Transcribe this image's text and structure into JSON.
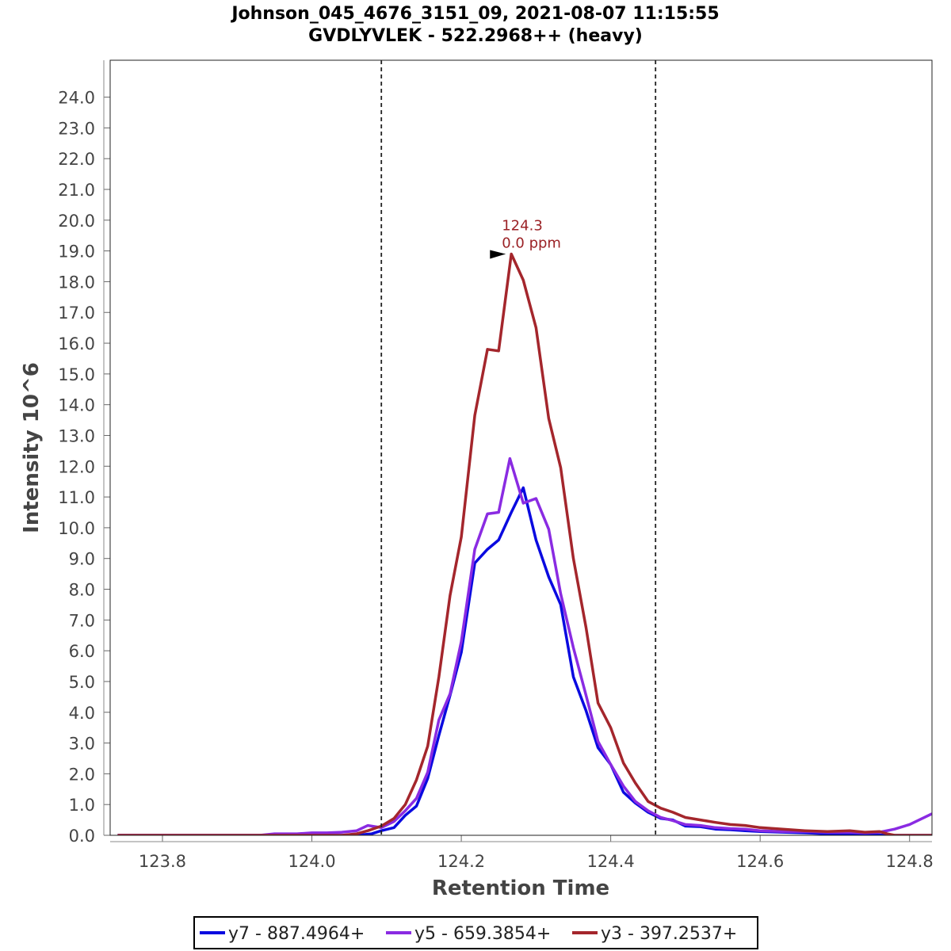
{
  "chart_data": {
    "type": "line",
    "title": "Johnson_045_4676_3151_09, 2021-08-07 11:15:55",
    "subtitle": "GVDLYVLEK - 522.2968++ (heavy)",
    "xlabel": "Retention Time",
    "ylabel": "Intensity 10^6",
    "xlim": [
      123.73,
      124.83
    ],
    "ylim": [
      0,
      25.2
    ],
    "x_ticks": [
      "123.8",
      "124.0",
      "124.2",
      "124.4",
      "124.6",
      "124.8"
    ],
    "x_tick_values": [
      123.8,
      124.0,
      124.2,
      124.4,
      124.6,
      124.8
    ],
    "y_ticks": [
      "0.0",
      "1.0",
      "2.0",
      "3.0",
      "4.0",
      "5.0",
      "6.0",
      "7.0",
      "8.0",
      "9.0",
      "10.0",
      "11.0",
      "12.0",
      "13.0",
      "14.0",
      "15.0",
      "16.0",
      "17.0",
      "18.0",
      "19.0",
      "20.0",
      "21.0",
      "22.0",
      "23.0",
      "24.0"
    ],
    "y_tick_values": [
      0,
      1,
      2,
      3,
      4,
      5,
      6,
      7,
      8,
      9,
      10,
      11,
      12,
      13,
      14,
      15,
      16,
      17,
      18,
      19,
      20,
      21,
      22,
      23,
      24
    ],
    "boundaries": [
      124.093,
      124.46
    ],
    "annotation": {
      "x": 124.267,
      "y": 18.9,
      "line1": "124.3",
      "line2": "0.0 ppm",
      "color": "#9b2226"
    },
    "legend_position": "bottom",
    "series": [
      {
        "name": "y7 - 887.4964+",
        "color": "#0a0ae0",
        "points": [
          [
            123.74,
            0
          ],
          [
            124.06,
            0
          ],
          [
            124.08,
            0.05
          ],
          [
            124.093,
            0.15
          ],
          [
            124.11,
            0.25
          ],
          [
            124.125,
            0.65
          ],
          [
            124.14,
            0.95
          ],
          [
            124.155,
            1.85
          ],
          [
            124.17,
            3.25
          ],
          [
            124.185,
            4.55
          ],
          [
            124.2,
            5.95
          ],
          [
            124.218,
            8.85
          ],
          [
            124.235,
            9.3
          ],
          [
            124.25,
            9.6
          ],
          [
            124.267,
            10.5
          ],
          [
            124.283,
            11.3
          ],
          [
            124.3,
            9.6
          ],
          [
            124.317,
            8.4
          ],
          [
            124.333,
            7.5
          ],
          [
            124.35,
            5.15
          ],
          [
            124.367,
            4.05
          ],
          [
            124.383,
            2.85
          ],
          [
            124.4,
            2.3
          ],
          [
            124.417,
            1.4
          ],
          [
            124.433,
            1.05
          ],
          [
            124.45,
            0.75
          ],
          [
            124.467,
            0.55
          ],
          [
            124.483,
            0.5
          ],
          [
            124.5,
            0.3
          ],
          [
            124.52,
            0.28
          ],
          [
            124.54,
            0.2
          ],
          [
            124.56,
            0.18
          ],
          [
            124.58,
            0.15
          ],
          [
            124.6,
            0.12
          ],
          [
            124.63,
            0.1
          ],
          [
            124.66,
            0.08
          ],
          [
            124.69,
            0.05
          ],
          [
            124.72,
            0.05
          ],
          [
            124.75,
            0.02
          ],
          [
            124.77,
            0
          ],
          [
            124.83,
            0
          ]
        ]
      },
      {
        "name": "y5 - 659.3854+",
        "color": "#8a2be2",
        "points": [
          [
            123.74,
            0
          ],
          [
            123.93,
            0
          ],
          [
            123.95,
            0.05
          ],
          [
            123.98,
            0.05
          ],
          [
            124.0,
            0.08
          ],
          [
            124.02,
            0.08
          ],
          [
            124.04,
            0.1
          ],
          [
            124.06,
            0.15
          ],
          [
            124.075,
            0.32
          ],
          [
            124.093,
            0.25
          ],
          [
            124.11,
            0.45
          ],
          [
            124.125,
            0.8
          ],
          [
            124.14,
            1.2
          ],
          [
            124.155,
            2.05
          ],
          [
            124.17,
            3.75
          ],
          [
            124.185,
            4.6
          ],
          [
            124.2,
            6.3
          ],
          [
            124.218,
            9.3
          ],
          [
            124.235,
            10.45
          ],
          [
            124.25,
            10.5
          ],
          [
            124.265,
            12.25
          ],
          [
            124.283,
            10.8
          ],
          [
            124.3,
            10.95
          ],
          [
            124.317,
            9.95
          ],
          [
            124.333,
            7.85
          ],
          [
            124.35,
            6.1
          ],
          [
            124.367,
            4.55
          ],
          [
            124.383,
            3.05
          ],
          [
            124.4,
            2.3
          ],
          [
            124.417,
            1.6
          ],
          [
            124.433,
            1.1
          ],
          [
            124.45,
            0.8
          ],
          [
            124.467,
            0.58
          ],
          [
            124.483,
            0.48
          ],
          [
            124.5,
            0.35
          ],
          [
            124.52,
            0.32
          ],
          [
            124.54,
            0.25
          ],
          [
            124.56,
            0.22
          ],
          [
            124.58,
            0.2
          ],
          [
            124.6,
            0.15
          ],
          [
            124.63,
            0.12
          ],
          [
            124.66,
            0.12
          ],
          [
            124.69,
            0.1
          ],
          [
            124.72,
            0.1
          ],
          [
            124.74,
            0.08
          ],
          [
            124.76,
            0.1
          ],
          [
            124.78,
            0.2
          ],
          [
            124.8,
            0.35
          ],
          [
            124.83,
            0.7
          ]
        ]
      },
      {
        "name": "y3 - 397.2537+",
        "color": "#a4262c",
        "points": [
          [
            123.74,
            0
          ],
          [
            124.04,
            0
          ],
          [
            124.06,
            0.05
          ],
          [
            124.075,
            0.15
          ],
          [
            124.093,
            0.3
          ],
          [
            124.11,
            0.55
          ],
          [
            124.125,
            1.0
          ],
          [
            124.14,
            1.8
          ],
          [
            124.155,
            2.9
          ],
          [
            124.17,
            5.15
          ],
          [
            124.185,
            7.8
          ],
          [
            124.2,
            9.7
          ],
          [
            124.218,
            13.65
          ],
          [
            124.235,
            15.8
          ],
          [
            124.25,
            15.75
          ],
          [
            124.267,
            18.9
          ],
          [
            124.283,
            18.05
          ],
          [
            124.3,
            16.5
          ],
          [
            124.317,
            13.55
          ],
          [
            124.333,
            11.95
          ],
          [
            124.35,
            9.0
          ],
          [
            124.367,
            6.75
          ],
          [
            124.383,
            4.3
          ],
          [
            124.4,
            3.5
          ],
          [
            124.417,
            2.35
          ],
          [
            124.433,
            1.7
          ],
          [
            124.45,
            1.1
          ],
          [
            124.467,
            0.88
          ],
          [
            124.483,
            0.75
          ],
          [
            124.5,
            0.58
          ],
          [
            124.52,
            0.5
          ],
          [
            124.54,
            0.42
          ],
          [
            124.56,
            0.35
          ],
          [
            124.58,
            0.32
          ],
          [
            124.6,
            0.25
          ],
          [
            124.63,
            0.2
          ],
          [
            124.66,
            0.15
          ],
          [
            124.69,
            0.12
          ],
          [
            124.72,
            0.15
          ],
          [
            124.74,
            0.1
          ],
          [
            124.76,
            0.12
          ],
          [
            124.77,
            0.05
          ],
          [
            124.78,
            0
          ],
          [
            124.83,
            0
          ]
        ]
      }
    ]
  }
}
